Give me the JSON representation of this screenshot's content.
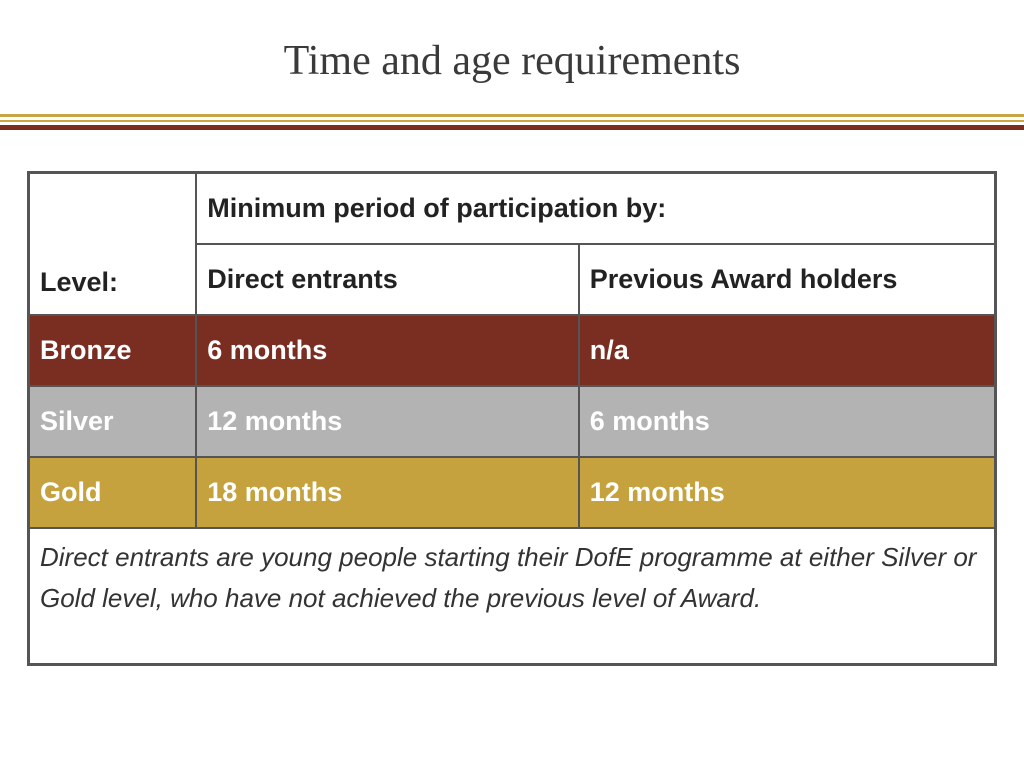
{
  "slide": {
    "title": "Time and age requirements"
  },
  "table": {
    "level_header": "Level:",
    "group_header": "Minimum period of participation by:",
    "col_direct": "Direct entrants",
    "col_previous": "Previous Award holders",
    "rows": [
      {
        "level": "Bronze",
        "direct": "6 months",
        "previous": "n/a",
        "color": "#7a2e22"
      },
      {
        "level": "Silver",
        "direct": "12 months",
        "previous": "6 months",
        "color": "#b3b3b3"
      },
      {
        "level": "Gold",
        "direct": "18 months",
        "previous": "12 months",
        "color": "#c5a23e"
      }
    ],
    "note": "Direct entrants are young people starting their DofE programme at either Silver or Gold level, who have not achieved the previous level of Award."
  },
  "colors": {
    "accent_gold": "#c8a646",
    "accent_maroon": "#7a2e22"
  }
}
